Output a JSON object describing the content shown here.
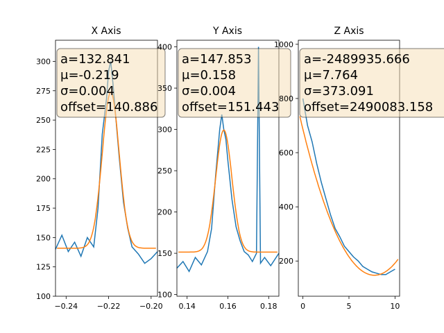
{
  "colors": {
    "data": "#1f77b4",
    "fit": "#ff7f0e",
    "box_fill": "#f5deb3",
    "box_edge": "#000000"
  },
  "chart_data": [
    {
      "type": "line",
      "title": "X Axis",
      "xlim": [
        -0.245,
        -0.197
      ],
      "ylim": [
        100,
        318
      ],
      "xticks": [
        -0.24,
        -0.22,
        -0.2
      ],
      "xtick_labels": [
        "−0.24",
        "−0.22",
        "−0.20"
      ],
      "yticks": [
        100,
        125,
        150,
        175,
        200,
        225,
        250,
        275,
        300
      ],
      "ytick_labels": [
        "100",
        "125",
        "150",
        "175",
        "200",
        "225",
        "250",
        "275",
        "300"
      ],
      "fit": {
        "a": 132.841,
        "mu": -0.219,
        "sigma": 0.004,
        "offset": 140.886
      },
      "annotation": [
        "a=132.841",
        "μ=-0.219",
        "σ=0.004",
        "offset=140.886"
      ],
      "series": [
        {
          "x": [
            -0.245,
            -0.242,
            -0.239,
            -0.236,
            -0.233,
            -0.23,
            -0.227,
            -0.225,
            -0.223,
            -0.221,
            -0.22,
            -0.219,
            -0.218,
            -0.217,
            -0.215,
            -0.213,
            -0.211,
            -0.209,
            -0.206,
            -0.203,
            -0.2,
            -0.197
          ],
          "y": [
            140,
            152,
            138,
            146,
            134,
            150,
            142,
            175,
            238,
            268,
            292,
            300,
            282,
            260,
            218,
            180,
            158,
            142,
            136,
            128,
            132,
            138
          ]
        }
      ]
    },
    {
      "type": "line",
      "title": "Y Axis",
      "xlim": [
        0.135,
        0.185
      ],
      "ylim": [
        98,
        408
      ],
      "xticks": [
        0.14,
        0.16,
        0.18
      ],
      "xtick_labels": [
        "0.14",
        "0.16",
        "0.18"
      ],
      "yticks": [
        100,
        150,
        200,
        250,
        300,
        350,
        400
      ],
      "ytick_labels": [
        "100",
        "150",
        "200",
        "250",
        "300",
        "350",
        "400"
      ],
      "fit": {
        "a": 147.853,
        "mu": 0.158,
        "sigma": 0.004,
        "offset": 151.443
      },
      "annotation": [
        "a=147.853",
        "μ=0.158",
        "σ=0.004",
        "offset=151.443"
      ],
      "series": [
        {
          "x": [
            0.135,
            0.138,
            0.141,
            0.144,
            0.147,
            0.15,
            0.152,
            0.154,
            0.156,
            0.157,
            0.158,
            0.159,
            0.16,
            0.162,
            0.164,
            0.166,
            0.168,
            0.17,
            0.172,
            0.174,
            0.175,
            0.176,
            0.178,
            0.181,
            0.185
          ],
          "y": [
            132,
            140,
            128,
            145,
            136,
            152,
            180,
            245,
            300,
            318,
            300,
            288,
            262,
            215,
            182,
            165,
            152,
            148,
            140,
            150,
            400,
            138,
            145,
            135,
            150
          ]
        }
      ]
    },
    {
      "type": "line",
      "title": "Z Axis",
      "xlim": [
        -0.5,
        10.5
      ],
      "ylim": [
        70,
        1015
      ],
      "xticks": [
        0,
        5,
        10
      ],
      "xtick_labels": [
        "0",
        "5",
        "10"
      ],
      "yticks": [
        200,
        400,
        600,
        800,
        1000
      ],
      "ytick_labels": [
        "200",
        "400",
        "600",
        "800",
        "1000"
      ],
      "fit": {
        "a": -2489935.666,
        "mu": 7.764,
        "sigma": 373.091,
        "offset": 2490083.158
      },
      "annotation": [
        "a=-2489935.666",
        "μ=7.764",
        "σ=373.091",
        "offset=2490083.158"
      ],
      "series": [
        {
          "x": [
            0,
            0.5,
            1,
            1.5,
            2,
            2.5,
            3,
            3.5,
            4,
            4.5,
            5,
            5.5,
            6,
            6.5,
            7,
            7.5,
            8,
            8.5,
            9,
            9.5,
            10
          ],
          "y": [
            800,
            700,
            640,
            560,
            490,
            430,
            370,
            320,
            290,
            255,
            235,
            215,
            200,
            180,
            170,
            160,
            155,
            150,
            150,
            160,
            170
          ]
        }
      ]
    }
  ]
}
